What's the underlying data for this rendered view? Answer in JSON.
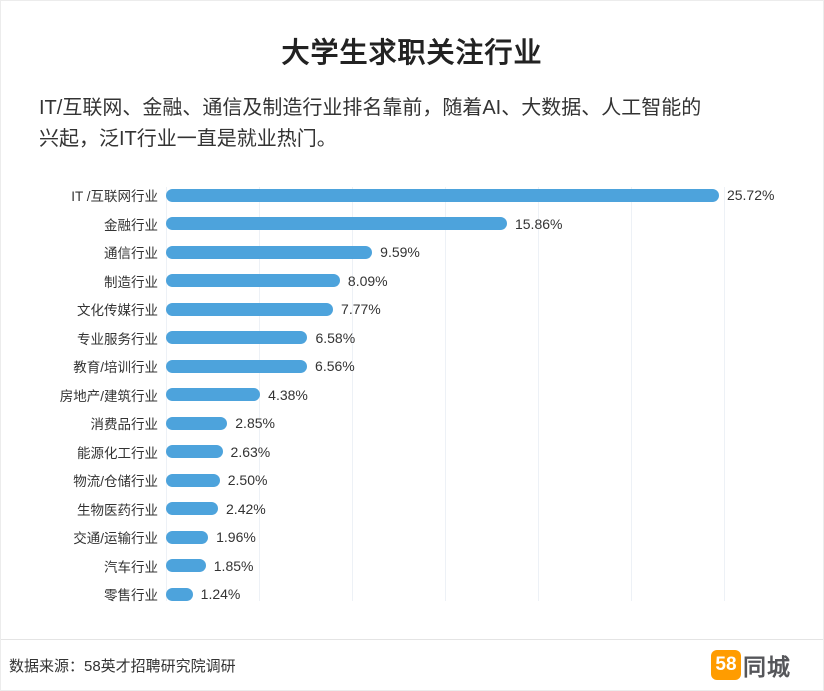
{
  "title": "大学生求职关注行业",
  "subtitle_lines": [
    "IT/互联网、金融、通信及制造行业排名靠前，随着AI、大数据、人工智能的",
    "兴起，泛IT行业一直是就业热门。"
  ],
  "chart_data": {
    "type": "bar",
    "orientation": "horizontal",
    "title": "大学生求职关注行业",
    "xlabel": "",
    "ylabel": "",
    "xlim": [
      0,
      26
    ],
    "grid": true,
    "bar_color": "#4da3dc",
    "categories": [
      "IT /互联网行业",
      "金融行业",
      "通信行业",
      "制造行业",
      "文化传媒行业",
      "专业服务行业",
      "教育/培训行业",
      "房地产/建筑行业",
      "消费品行业",
      "能源化工行业",
      "物流/仓储行业",
      "生物医药行业",
      "交通/运输行业",
      "汽车行业",
      "零售行业"
    ],
    "values": [
      25.72,
      15.86,
      9.59,
      8.09,
      7.77,
      6.58,
      6.56,
      4.38,
      2.85,
      2.63,
      2.5,
      2.42,
      1.96,
      1.85,
      1.24
    ],
    "labels": [
      "25.72%",
      "15.86%",
      "9.59%",
      "8.09%",
      "7.77%",
      "6.58%",
      "6.56%",
      "4.38%",
      "2.85%",
      "2.63%",
      "2.50%",
      "2.42%",
      "1.96%",
      "1.85%",
      "1.24%"
    ]
  },
  "footer": {
    "source": "数据来源：58英才招聘研究院调研",
    "logo_badge": "58",
    "logo_text": "同城"
  },
  "colors": {
    "bar": "#4da3dc",
    "logo_orange": "#ff9c00",
    "text": "#333333"
  }
}
